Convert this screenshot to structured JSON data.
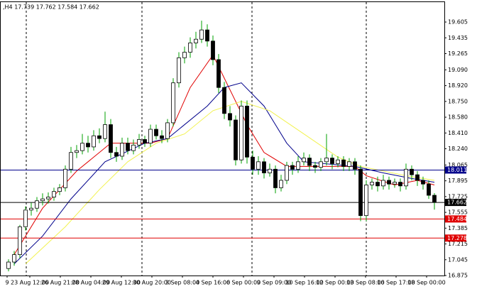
{
  "chart_data": {
    "type": "candlestick",
    "title": ",H4 17.739 17.762 17.584 17.662",
    "ohlc": [
      [
        16.95,
        17.05,
        16.92,
        17.02
      ],
      [
        17.02,
        17.14,
        16.98,
        17.1
      ],
      [
        17.1,
        17.42,
        17.06,
        17.4
      ],
      [
        17.4,
        17.62,
        17.36,
        17.58
      ],
      [
        17.58,
        17.66,
        17.52,
        17.6
      ],
      [
        17.6,
        17.72,
        17.56,
        17.68
      ],
      [
        17.68,
        17.76,
        17.63,
        17.7
      ],
      [
        17.7,
        17.77,
        17.65,
        17.72
      ],
      [
        17.72,
        17.82,
        17.68,
        17.78
      ],
      [
        17.78,
        17.86,
        17.74,
        17.82
      ],
      [
        17.82,
        18.06,
        17.78,
        18.02
      ],
      [
        18.02,
        18.26,
        17.98,
        18.2
      ],
      [
        18.2,
        18.28,
        18.14,
        18.22
      ],
      [
        18.22,
        18.4,
        18.18,
        18.3
      ],
      [
        18.3,
        18.38,
        18.2,
        18.26
      ],
      [
        18.26,
        18.44,
        18.22,
        18.38
      ],
      [
        18.38,
        18.46,
        18.3,
        18.35
      ],
      [
        18.35,
        18.64,
        18.31,
        18.5
      ],
      [
        18.5,
        18.56,
        18.14,
        18.2
      ],
      [
        18.2,
        18.26,
        18.1,
        18.16
      ],
      [
        18.16,
        18.36,
        18.12,
        18.3
      ],
      [
        18.3,
        18.36,
        18.18,
        18.22
      ],
      [
        18.22,
        18.34,
        18.18,
        18.28
      ],
      [
        18.28,
        18.4,
        18.24,
        18.34
      ],
      [
        18.34,
        18.38,
        18.26,
        18.3
      ],
      [
        18.3,
        18.5,
        18.26,
        18.45
      ],
      [
        18.45,
        18.5,
        18.34,
        18.38
      ],
      [
        18.38,
        18.44,
        18.3,
        18.35
      ],
      [
        18.35,
        18.56,
        18.31,
        18.52
      ],
      [
        18.52,
        19.0,
        18.48,
        18.95
      ],
      [
        18.95,
        19.28,
        18.9,
        19.22
      ],
      [
        19.22,
        19.34,
        19.16,
        19.28
      ],
      [
        19.28,
        19.44,
        19.22,
        19.38
      ],
      [
        19.38,
        19.5,
        19.32,
        19.42
      ],
      [
        19.42,
        19.62,
        19.38,
        19.52
      ],
      [
        19.52,
        19.58,
        19.34,
        19.4
      ],
      [
        19.4,
        19.46,
        19.14,
        19.2
      ],
      [
        19.2,
        19.26,
        18.84,
        18.9
      ],
      [
        18.9,
        18.96,
        18.56,
        18.62
      ],
      [
        18.62,
        18.7,
        18.48,
        18.55
      ],
      [
        18.55,
        18.6,
        18.06,
        18.12
      ],
      [
        18.12,
        18.76,
        18.08,
        18.7
      ],
      [
        18.7,
        18.76,
        18.08,
        18.15
      ],
      [
        18.15,
        18.22,
        17.96,
        18.02
      ],
      [
        18.02,
        18.16,
        17.96,
        18.1
      ],
      [
        18.1,
        18.14,
        17.92,
        17.98
      ],
      [
        17.98,
        18.08,
        17.94,
        18.02
      ],
      [
        18.02,
        18.06,
        17.76,
        17.82
      ],
      [
        17.82,
        17.96,
        17.78,
        17.9
      ],
      [
        17.9,
        18.1,
        17.86,
        18.06
      ],
      [
        18.06,
        18.1,
        17.96,
        18.02
      ],
      [
        18.02,
        18.16,
        17.98,
        18.1
      ],
      [
        18.1,
        18.2,
        18.06,
        18.14
      ],
      [
        18.14,
        18.18,
        18.0,
        18.06
      ],
      [
        18.06,
        18.1,
        17.98,
        18.04
      ],
      [
        18.04,
        18.14,
        18.0,
        18.1
      ],
      [
        18.1,
        18.4,
        18.06,
        18.14
      ],
      [
        18.14,
        18.18,
        18.02,
        18.08
      ],
      [
        18.08,
        18.16,
        18.04,
        18.12
      ],
      [
        18.12,
        18.16,
        18.0,
        18.05
      ],
      [
        18.05,
        18.14,
        18.0,
        18.1
      ],
      [
        18.1,
        18.14,
        17.96,
        18.02
      ],
      [
        18.02,
        18.06,
        17.46,
        17.52
      ],
      [
        17.52,
        17.9,
        17.46,
        17.85
      ],
      [
        17.85,
        17.92,
        17.8,
        17.88
      ],
      [
        17.88,
        17.94,
        17.78,
        17.84
      ],
      [
        17.84,
        17.96,
        17.8,
        17.9
      ],
      [
        17.9,
        17.94,
        17.8,
        17.86
      ],
      [
        17.86,
        17.92,
        17.82,
        17.88
      ],
      [
        17.88,
        17.92,
        17.78,
        17.84
      ],
      [
        17.84,
        18.08,
        17.8,
        18.02
      ],
      [
        18.02,
        18.06,
        17.9,
        17.96
      ],
      [
        17.96,
        18.0,
        17.84,
        17.9
      ],
      [
        17.9,
        17.94,
        17.8,
        17.86
      ],
      [
        17.86,
        17.9,
        17.7,
        17.739
      ],
      [
        17.739,
        17.762,
        17.584,
        17.662
      ]
    ],
    "up_color": "#ffffff",
    "down_color": "#000000",
    "wick_color": "#00a000",
    "series": [
      {
        "color": "#e00000",
        "x": [
          1,
          6,
          12,
          18,
          25,
          28,
          32,
          36,
          38,
          42,
          45,
          49,
          61,
          63,
          68,
          72,
          75
        ],
        "values": [
          17.1,
          17.6,
          18.0,
          18.3,
          18.3,
          18.35,
          18.9,
          19.25,
          19.0,
          18.5,
          18.2,
          18.05,
          18.05,
          17.95,
          17.85,
          17.9,
          17.85
        ]
      },
      {
        "color": "#00008b",
        "x": [
          1,
          6,
          11,
          17,
          24,
          28,
          35,
          38,
          41,
          45,
          49,
          52,
          61,
          66,
          71,
          75
        ],
        "values": [
          17.0,
          17.3,
          17.7,
          18.1,
          18.3,
          18.35,
          18.7,
          18.9,
          18.95,
          18.7,
          18.3,
          18.1,
          18.05,
          17.98,
          17.92,
          17.88
        ]
      },
      {
        "color": "#f2f250",
        "x": [
          3,
          10,
          16,
          21,
          26,
          31,
          36,
          41,
          46,
          52,
          58,
          62,
          70,
          75
        ],
        "values": [
          17.0,
          17.4,
          17.8,
          18.1,
          18.3,
          18.4,
          18.65,
          18.75,
          18.65,
          18.4,
          18.15,
          18.05,
          17.95,
          17.9
        ]
      }
    ],
    "levels": [
      {
        "value": 18.011,
        "color": "#00008b"
      },
      {
        "value": 17.662,
        "color": "#000000"
      },
      {
        "value": 17.484,
        "color": "#e00000"
      },
      {
        "value": 17.278,
        "color": "#e00000"
      }
    ],
    "ylim": [
      16.875,
      19.827
    ],
    "yticks": [
      19.605,
      19.435,
      19.265,
      {
        "value": 19.09,
        "label": "19.090"
      },
      {
        "value": 18.92,
        "label": "18.920"
      },
      {
        "value": 18.75,
        "label": "18.750"
      },
      {
        "value": 18.58,
        "label": "18.580"
      },
      {
        "value": 18.41,
        "label": "18.410"
      },
      {
        "value": 18.24,
        "label": "18.240"
      },
      18.065,
      17.895,
      17.725,
      17.555,
      17.385,
      17.215,
      17.045,
      16.875
    ],
    "xticks": [
      {
        "value": -0.25,
        "label": "9"
      },
      {
        "value": 3.75,
        "label": "23 Aug 12:00"
      },
      {
        "value": 9.125,
        "label": "26 Aug 21:00"
      },
      {
        "value": 14.5,
        "label": "28 Aug 04:00"
      },
      {
        "value": 19.875,
        "label": "29 Aug 12:00"
      },
      {
        "value": 25.25,
        "label": "30 Aug 20:00"
      },
      {
        "value": 30.625,
        "label": "3 Sep 08:00"
      },
      {
        "value": 36,
        "label": "4 Sep 16:00"
      },
      {
        "value": 41.375,
        "label": "6 Sep 00:00"
      },
      {
        "value": 46.75,
        "label": "9 Sep 09:00"
      },
      {
        "value": 52.125,
        "label": "10 Sep 16:00"
      },
      {
        "value": 57.5,
        "label": "12 Sep 00:00"
      },
      {
        "value": 62.875,
        "label": "13 Sep 08:00"
      },
      {
        "value": 68.25,
        "label": "16 Sep 17:00"
      },
      {
        "value": 73.625,
        "label": "18 Sep 00:00"
      }
    ]
  }
}
